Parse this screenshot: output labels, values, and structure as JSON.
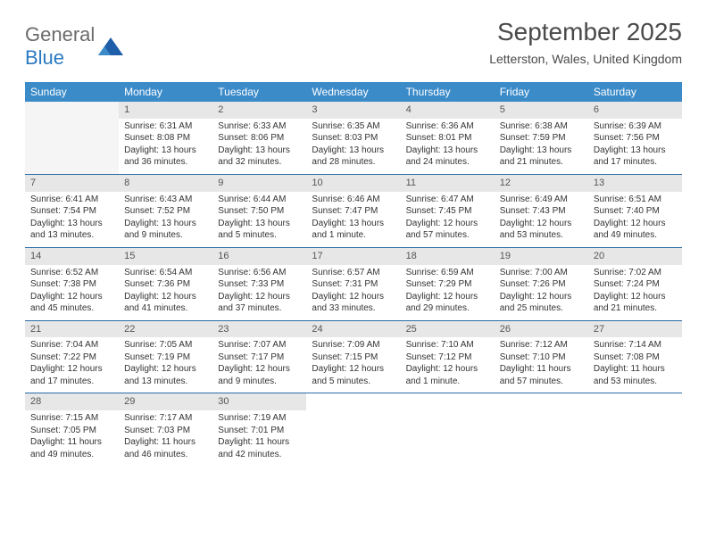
{
  "logo": {
    "word1": "General",
    "word2": "Blue"
  },
  "title": "September 2025",
  "location": "Letterston, Wales, United Kingdom",
  "colors": {
    "header_bg": "#3b8bc9",
    "header_text": "#ffffff",
    "rule": "#2a6ea8",
    "daynum_bg": "#e7e7e7",
    "logo_gray": "#6b6b6b",
    "logo_blue": "#2a7ac2"
  },
  "weekdays": [
    "Sunday",
    "Monday",
    "Tuesday",
    "Wednesday",
    "Thursday",
    "Friday",
    "Saturday"
  ],
  "weeks": [
    [
      {
        "blank": true
      },
      {
        "n": "1",
        "sr": "Sunrise: 6:31 AM",
        "ss": "Sunset: 8:08 PM",
        "d1": "Daylight: 13 hours",
        "d2": "and 36 minutes."
      },
      {
        "n": "2",
        "sr": "Sunrise: 6:33 AM",
        "ss": "Sunset: 8:06 PM",
        "d1": "Daylight: 13 hours",
        "d2": "and 32 minutes."
      },
      {
        "n": "3",
        "sr": "Sunrise: 6:35 AM",
        "ss": "Sunset: 8:03 PM",
        "d1": "Daylight: 13 hours",
        "d2": "and 28 minutes."
      },
      {
        "n": "4",
        "sr": "Sunrise: 6:36 AM",
        "ss": "Sunset: 8:01 PM",
        "d1": "Daylight: 13 hours",
        "d2": "and 24 minutes."
      },
      {
        "n": "5",
        "sr": "Sunrise: 6:38 AM",
        "ss": "Sunset: 7:59 PM",
        "d1": "Daylight: 13 hours",
        "d2": "and 21 minutes."
      },
      {
        "n": "6",
        "sr": "Sunrise: 6:39 AM",
        "ss": "Sunset: 7:56 PM",
        "d1": "Daylight: 13 hours",
        "d2": "and 17 minutes."
      }
    ],
    [
      {
        "n": "7",
        "sr": "Sunrise: 6:41 AM",
        "ss": "Sunset: 7:54 PM",
        "d1": "Daylight: 13 hours",
        "d2": "and 13 minutes."
      },
      {
        "n": "8",
        "sr": "Sunrise: 6:43 AM",
        "ss": "Sunset: 7:52 PM",
        "d1": "Daylight: 13 hours",
        "d2": "and 9 minutes."
      },
      {
        "n": "9",
        "sr": "Sunrise: 6:44 AM",
        "ss": "Sunset: 7:50 PM",
        "d1": "Daylight: 13 hours",
        "d2": "and 5 minutes."
      },
      {
        "n": "10",
        "sr": "Sunrise: 6:46 AM",
        "ss": "Sunset: 7:47 PM",
        "d1": "Daylight: 13 hours",
        "d2": "and 1 minute."
      },
      {
        "n": "11",
        "sr": "Sunrise: 6:47 AM",
        "ss": "Sunset: 7:45 PM",
        "d1": "Daylight: 12 hours",
        "d2": "and 57 minutes."
      },
      {
        "n": "12",
        "sr": "Sunrise: 6:49 AM",
        "ss": "Sunset: 7:43 PM",
        "d1": "Daylight: 12 hours",
        "d2": "and 53 minutes."
      },
      {
        "n": "13",
        "sr": "Sunrise: 6:51 AM",
        "ss": "Sunset: 7:40 PM",
        "d1": "Daylight: 12 hours",
        "d2": "and 49 minutes."
      }
    ],
    [
      {
        "n": "14",
        "sr": "Sunrise: 6:52 AM",
        "ss": "Sunset: 7:38 PM",
        "d1": "Daylight: 12 hours",
        "d2": "and 45 minutes."
      },
      {
        "n": "15",
        "sr": "Sunrise: 6:54 AM",
        "ss": "Sunset: 7:36 PM",
        "d1": "Daylight: 12 hours",
        "d2": "and 41 minutes."
      },
      {
        "n": "16",
        "sr": "Sunrise: 6:56 AM",
        "ss": "Sunset: 7:33 PM",
        "d1": "Daylight: 12 hours",
        "d2": "and 37 minutes."
      },
      {
        "n": "17",
        "sr": "Sunrise: 6:57 AM",
        "ss": "Sunset: 7:31 PM",
        "d1": "Daylight: 12 hours",
        "d2": "and 33 minutes."
      },
      {
        "n": "18",
        "sr": "Sunrise: 6:59 AM",
        "ss": "Sunset: 7:29 PM",
        "d1": "Daylight: 12 hours",
        "d2": "and 29 minutes."
      },
      {
        "n": "19",
        "sr": "Sunrise: 7:00 AM",
        "ss": "Sunset: 7:26 PM",
        "d1": "Daylight: 12 hours",
        "d2": "and 25 minutes."
      },
      {
        "n": "20",
        "sr": "Sunrise: 7:02 AM",
        "ss": "Sunset: 7:24 PM",
        "d1": "Daylight: 12 hours",
        "d2": "and 21 minutes."
      }
    ],
    [
      {
        "n": "21",
        "sr": "Sunrise: 7:04 AM",
        "ss": "Sunset: 7:22 PM",
        "d1": "Daylight: 12 hours",
        "d2": "and 17 minutes."
      },
      {
        "n": "22",
        "sr": "Sunrise: 7:05 AM",
        "ss": "Sunset: 7:19 PM",
        "d1": "Daylight: 12 hours",
        "d2": "and 13 minutes."
      },
      {
        "n": "23",
        "sr": "Sunrise: 7:07 AM",
        "ss": "Sunset: 7:17 PM",
        "d1": "Daylight: 12 hours",
        "d2": "and 9 minutes."
      },
      {
        "n": "24",
        "sr": "Sunrise: 7:09 AM",
        "ss": "Sunset: 7:15 PM",
        "d1": "Daylight: 12 hours",
        "d2": "and 5 minutes."
      },
      {
        "n": "25",
        "sr": "Sunrise: 7:10 AM",
        "ss": "Sunset: 7:12 PM",
        "d1": "Daylight: 12 hours",
        "d2": "and 1 minute."
      },
      {
        "n": "26",
        "sr": "Sunrise: 7:12 AM",
        "ss": "Sunset: 7:10 PM",
        "d1": "Daylight: 11 hours",
        "d2": "and 57 minutes."
      },
      {
        "n": "27",
        "sr": "Sunrise: 7:14 AM",
        "ss": "Sunset: 7:08 PM",
        "d1": "Daylight: 11 hours",
        "d2": "and 53 minutes."
      }
    ],
    [
      {
        "n": "28",
        "sr": "Sunrise: 7:15 AM",
        "ss": "Sunset: 7:05 PM",
        "d1": "Daylight: 11 hours",
        "d2": "and 49 minutes."
      },
      {
        "n": "29",
        "sr": "Sunrise: 7:17 AM",
        "ss": "Sunset: 7:03 PM",
        "d1": "Daylight: 11 hours",
        "d2": "and 46 minutes."
      },
      {
        "n": "30",
        "sr": "Sunrise: 7:19 AM",
        "ss": "Sunset: 7:01 PM",
        "d1": "Daylight: 11 hours",
        "d2": "and 42 minutes."
      },
      {
        "tail": true
      },
      {
        "tail": true
      },
      {
        "tail": true
      },
      {
        "tail": true
      }
    ]
  ]
}
